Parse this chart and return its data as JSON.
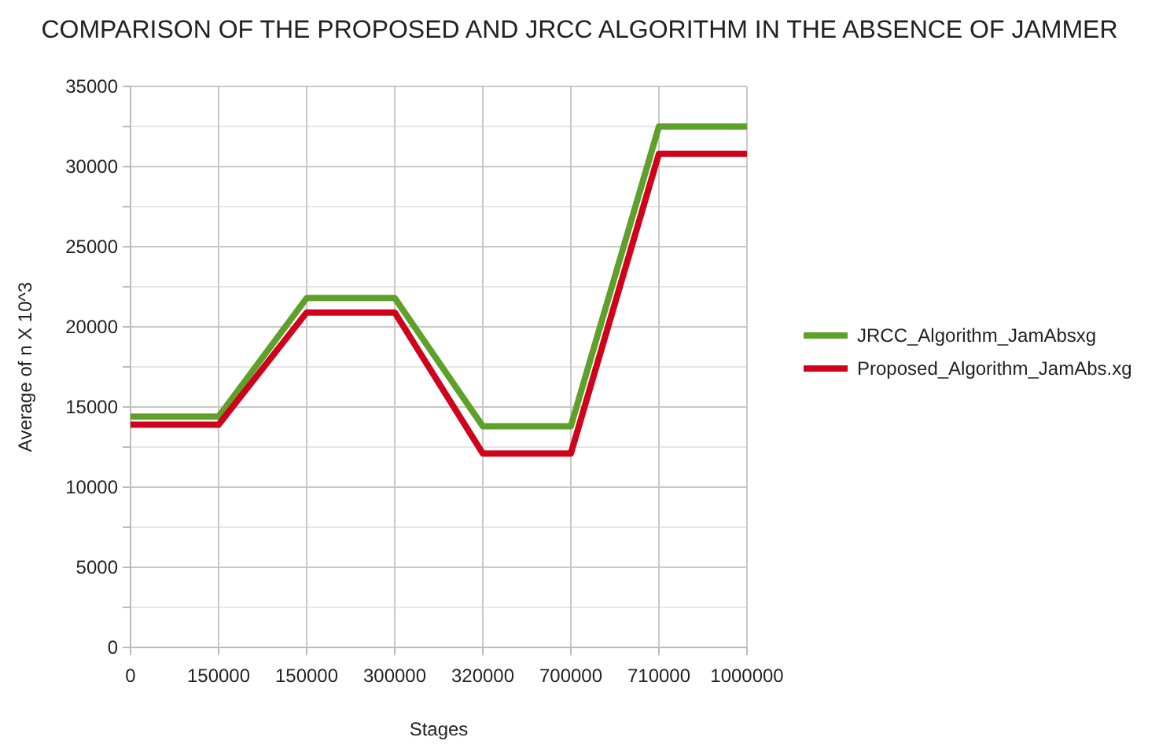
{
  "chart_data": {
    "type": "line",
    "title": "COMPARISON OF THE PROPOSED AND JRCC ALGORITHM IN THE ABSENCE OF JAMMER",
    "xlabel": "Stages",
    "ylabel": "Average of n X 10^3",
    "categories": [
      "0",
      "150000",
      "150000",
      "300000",
      "320000",
      "700000",
      "710000",
      "1000000"
    ],
    "series": [
      {
        "name": "JRCC_Algorithm_JamAbsxg",
        "color": "#5ea12a",
        "values": [
          14400,
          14400,
          21800,
          21800,
          13800,
          13800,
          32500,
          32500
        ]
      },
      {
        "name": "Proposed_Algorithm_JamAbs.xg",
        "color": "#d0021b",
        "values": [
          13900,
          13900,
          20900,
          20900,
          12100,
          12100,
          30800,
          30800
        ]
      }
    ],
    "ylim": [
      0,
      35000
    ],
    "yticks": [
      0,
      {
        "value": 2500,
        "label": null
      },
      5000,
      {
        "value": 7500,
        "label": null
      },
      10000,
      {
        "value": 12500,
        "label": null
      },
      15000,
      {
        "value": 17500,
        "label": null
      },
      20000,
      {
        "value": 22500,
        "label": null
      },
      25000,
      {
        "value": 27500,
        "label": null
      },
      30000,
      {
        "value": 32500,
        "label": null
      },
      35000
    ],
    "grid": true,
    "legend": "right",
    "marker": "none",
    "line_style": "solid"
  }
}
